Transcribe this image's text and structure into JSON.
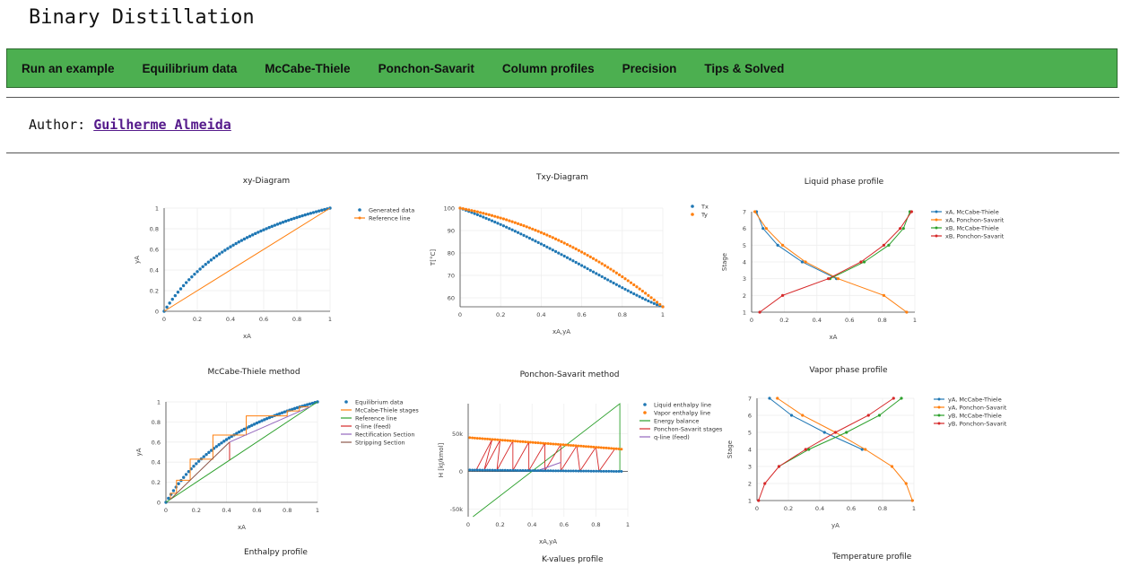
{
  "site": {
    "title": "Binary Distillation"
  },
  "nav": {
    "items": [
      {
        "label": "Run an example"
      },
      {
        "label": "Equilibrium data"
      },
      {
        "label": "McCabe-Thiele"
      },
      {
        "label": "Ponchon-Savarit"
      },
      {
        "label": "Column profiles"
      },
      {
        "label": "Precision"
      },
      {
        "label": "Tips & Solved"
      }
    ]
  },
  "author": {
    "prefix": "Author:",
    "name": "Guilherme Almeida"
  },
  "colors": {
    "nav_bg": "#4caf50",
    "blue": "#1f77b4",
    "orange": "#ff7f0e",
    "green": "#2ca02c",
    "red": "#d62728",
    "purple": "#9467bd",
    "brown": "#8c564b",
    "link": "#551a8b"
  },
  "charts": [
    {
      "id": "xy",
      "title": "xy-Diagram",
      "type": "scatter",
      "xlabel": "xA",
      "ylabel": "yA",
      "xlim": [
        0,
        1
      ],
      "ylim": [
        0,
        1
      ],
      "xticks": [
        "0",
        "0.2",
        "0.4",
        "0.6",
        "0.8",
        "1"
      ],
      "yticks": [
        "0",
        "0.2",
        "0.4",
        "0.6",
        "0.8",
        "1"
      ],
      "legend": [
        "Generated data",
        "Reference line"
      ],
      "series": [
        {
          "name": "Generated data",
          "relative_volatility": 2.5
        },
        {
          "name": "Reference line",
          "x": [
            0,
            1
          ],
          "y": [
            0,
            1
          ]
        }
      ]
    },
    {
      "id": "txy",
      "title": "Txy-Diagram",
      "type": "scatter",
      "xlabel": "xA,yA",
      "ylabel": "T[°C]",
      "xlim": [
        0,
        1
      ],
      "ylim": [
        56,
        100
      ],
      "xticks": [
        "0",
        "0.2",
        "0.4",
        "0.6",
        "0.8",
        "1"
      ],
      "yticks": [
        "60",
        "70",
        "80",
        "90",
        "100"
      ],
      "legend": [
        "Tx",
        "Ty"
      ],
      "series": [
        {
          "name": "Tx",
          "T_start": 100,
          "T_end": 56
        },
        {
          "name": "Ty",
          "T_start": 100,
          "T_end": 56
        }
      ]
    },
    {
      "id": "liquid",
      "title": "Liquid phase profile",
      "type": "line",
      "xlabel": "xA",
      "ylabel": "Stage",
      "xlim": [
        0,
        1
      ],
      "ylim": [
        1,
        7
      ],
      "xticks": [
        "0",
        "0.2",
        "0.4",
        "0.6",
        "0.8",
        "1"
      ],
      "yticks": [
        "1",
        "2",
        "3",
        "4",
        "5",
        "6",
        "7"
      ],
      "legend": [
        "xA, McCabe-Thiele",
        "xA, Ponchon-Savarit",
        "xB, McCabe-Thiele",
        "xB, Ponchon-Savarit"
      ],
      "series": [
        {
          "name": "xA, McCabe-Thiele",
          "points": [
            [
              0.03,
              7
            ],
            [
              0.07,
              6
            ],
            [
              0.16,
              5
            ],
            [
              0.31,
              4
            ],
            [
              0.52,
              3
            ]
          ]
        },
        {
          "name": "xA, Ponchon-Savarit",
          "points": [
            [
              0.02,
              7
            ],
            [
              0.09,
              6
            ],
            [
              0.19,
              5
            ],
            [
              0.33,
              4
            ],
            [
              0.53,
              3
            ],
            [
              0.81,
              2
            ],
            [
              0.95,
              1
            ]
          ]
        },
        {
          "name": "xB, McCabe-Thiele",
          "points": [
            [
              0.48,
              3
            ],
            [
              0.69,
              4
            ],
            [
              0.84,
              5
            ],
            [
              0.93,
              6
            ],
            [
              0.97,
              7
            ]
          ]
        },
        {
          "name": "xB, Ponchon-Savarit",
          "points": [
            [
              0.05,
              1
            ],
            [
              0.19,
              2
            ],
            [
              0.47,
              3
            ],
            [
              0.67,
              4
            ],
            [
              0.81,
              5
            ],
            [
              0.91,
              6
            ],
            [
              0.98,
              7
            ]
          ]
        }
      ]
    },
    {
      "id": "mccabe",
      "title": "McCabe-Thiele method",
      "type": "line",
      "xlabel": "xA",
      "ylabel": "yA",
      "xlim": [
        0,
        1
      ],
      "ylim": [
        0,
        1
      ],
      "xticks": [
        "0",
        "0.2",
        "0.4",
        "0.6",
        "0.8",
        "1"
      ],
      "yticks": [
        "0",
        "0.2",
        "0.4",
        "0.6",
        "0.8",
        "1"
      ],
      "legend": [
        "Equilibrium data",
        "McCabe-Thiele stages",
        "Reference line",
        "q-line (feed)",
        "Rectification Section",
        "Stripping Section"
      ],
      "series": [
        {
          "name": "Equilibrium data",
          "relative_volatility": 2.5
        },
        {
          "name": "McCabe-Thiele stages",
          "corners": [
            [
              0.95,
              0.95
            ],
            [
              0.88,
              0.95
            ],
            [
              0.88,
              0.91
            ],
            [
              0.8,
              0.91
            ],
            [
              0.8,
              0.86
            ],
            [
              0.53,
              0.86
            ],
            [
              0.53,
              0.67
            ],
            [
              0.31,
              0.67
            ],
            [
              0.31,
              0.43
            ],
            [
              0.16,
              0.43
            ],
            [
              0.16,
              0.22
            ],
            [
              0.07,
              0.22
            ],
            [
              0.07,
              0.09
            ],
            [
              0.03,
              0.09
            ],
            [
              0.03,
              0.03
            ]
          ]
        },
        {
          "name": "Reference line",
          "x": [
            0,
            1
          ],
          "y": [
            0,
            1
          ]
        },
        {
          "name": "q-line (feed)",
          "x": [
            0.42,
            0.42
          ],
          "y": [
            0.42,
            0.6
          ]
        },
        {
          "name": "Rectification Section",
          "x": [
            0.42,
            0.95
          ],
          "y": [
            0.6,
            0.95
          ]
        },
        {
          "name": "Stripping Section",
          "x": [
            0.03,
            0.42
          ],
          "y": [
            0.03,
            0.6
          ]
        }
      ]
    },
    {
      "id": "ponchon",
      "title": "Ponchon-Savarit method",
      "type": "line",
      "xlabel": "xA,yA",
      "ylabel": "H [kJ/kmol]",
      "xlim": [
        0,
        1
      ],
      "ylim": [
        -60000,
        90000
      ],
      "xticks": [
        "0",
        "0.2",
        "0.4",
        "0.6",
        "0.8",
        "1"
      ],
      "yticks": [
        "-50k",
        "0",
        "50k"
      ],
      "legend": [
        "Liquid enthalpy line",
        "Vapor enthalpy line",
        "Energy balance",
        "Ponchon-Savarit stages",
        "q-line (feed)"
      ],
      "series": [
        {
          "name": "Liquid enthalpy line",
          "H_start": 2000,
          "H_end": 0
        },
        {
          "name": "Vapor enthalpy line",
          "H_start": 45000,
          "H_end": 29000
        },
        {
          "name": "Energy balance",
          "x": [
            0.03,
            0.95,
            0.95
          ],
          "y": [
            -60000,
            90000,
            0
          ]
        },
        {
          "name": "Ponchon-Savarit stages",
          "x": [
            0.05,
            0.1,
            0.18,
            0.28,
            0.38,
            0.48,
            0.58,
            0.7,
            0.82
          ]
        },
        {
          "name": "q-line (feed)",
          "x": [
            0.42,
            0.58
          ],
          "y": [
            0,
            12000
          ]
        }
      ]
    },
    {
      "id": "vapor",
      "title": "Vapor phase profile",
      "type": "line",
      "xlabel": "yA",
      "ylabel": "Stage",
      "xlim": [
        0,
        1
      ],
      "ylim": [
        1,
        7
      ],
      "xticks": [
        "0",
        "0.2",
        "0.4",
        "0.6",
        "0.8",
        "1"
      ],
      "yticks": [
        "1",
        "2",
        "3",
        "4",
        "5",
        "6",
        "7"
      ],
      "legend": [
        "yA, McCabe-Thiele",
        "yA, Ponchon-Savarit",
        "yB, McCabe-Thiele",
        "yB, Ponchon-Savarit"
      ],
      "series": [
        {
          "name": "yA, McCabe-Thiele",
          "points": [
            [
              0.08,
              7
            ],
            [
              0.22,
              6
            ],
            [
              0.43,
              5
            ],
            [
              0.67,
              4
            ]
          ]
        },
        {
          "name": "yA, Ponchon-Savarit",
          "points": [
            [
              0.13,
              7
            ],
            [
              0.29,
              6
            ],
            [
              0.5,
              5
            ],
            [
              0.69,
              4
            ],
            [
              0.86,
              3
            ],
            [
              0.95,
              2
            ],
            [
              0.99,
              1
            ]
          ]
        },
        {
          "name": "yB, McCabe-Thiele",
          "points": [
            [
              0.14,
              3
            ],
            [
              0.33,
              4
            ],
            [
              0.57,
              5
            ],
            [
              0.78,
              6
            ],
            [
              0.92,
              7
            ]
          ]
        },
        {
          "name": "yB, Ponchon-Savarit",
          "points": [
            [
              0.01,
              1
            ],
            [
              0.05,
              2
            ],
            [
              0.14,
              3
            ],
            [
              0.31,
              4
            ],
            [
              0.5,
              5
            ],
            [
              0.71,
              6
            ],
            [
              0.87,
              7
            ]
          ]
        }
      ]
    }
  ],
  "bottom_titles": [
    "Enthalpy profile",
    "K-values profile",
    "Temperature profile"
  ]
}
